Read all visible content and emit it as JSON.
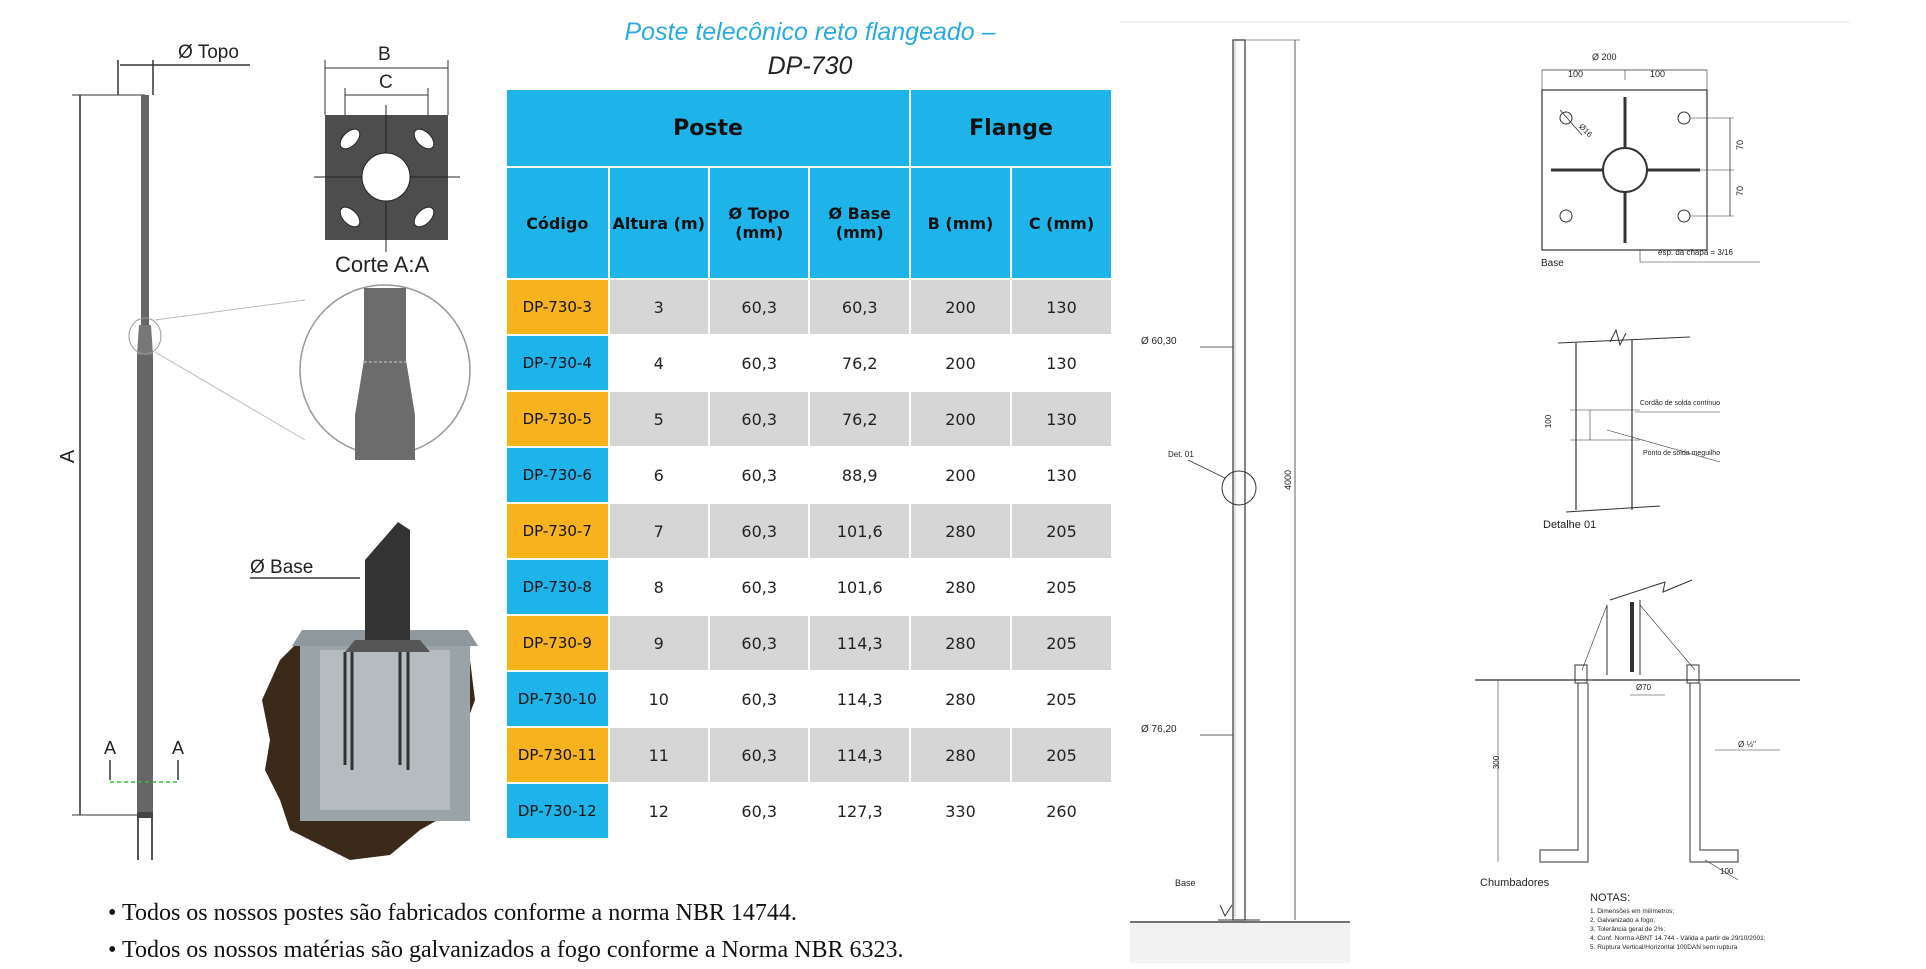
{
  "title": {
    "line1": "Poste telecônico reto flangeado –",
    "line2": "DP-730"
  },
  "left_drawing": {
    "topo_label": "Ø Topo",
    "a_label": "A",
    "section_mark": "A",
    "b_label": "B",
    "c_label": "C",
    "corte_label": "Corte A:A",
    "base_label": "Ø Base"
  },
  "table": {
    "group_headers": [
      "Poste",
      "Flange"
    ],
    "headers": [
      "Código",
      "Altura (m)",
      "Ø Topo (mm)",
      "Ø Base (mm)",
      "B (mm)",
      "C (mm)"
    ],
    "rows": [
      {
        "code": "DP-730-3",
        "altura": "3",
        "topo": "60,3",
        "base": "60,3",
        "b": "200",
        "c": "130"
      },
      {
        "code": "DP-730-4",
        "altura": "4",
        "topo": "60,3",
        "base": "76,2",
        "b": "200",
        "c": "130"
      },
      {
        "code": "DP-730-5",
        "altura": "5",
        "topo": "60,3",
        "base": "76,2",
        "b": "200",
        "c": "130"
      },
      {
        "code": "DP-730-6",
        "altura": "6",
        "topo": "60,3",
        "base": "88,9",
        "b": "200",
        "c": "130"
      },
      {
        "code": "DP-730-7",
        "altura": "7",
        "topo": "60,3",
        "base": "101,6",
        "b": "280",
        "c": "205"
      },
      {
        "code": "DP-730-8",
        "altura": "8",
        "topo": "60,3",
        "base": "101,6",
        "b": "280",
        "c": "205"
      },
      {
        "code": "DP-730-9",
        "altura": "9",
        "topo": "60,3",
        "base": "114,3",
        "b": "280",
        "c": "205"
      },
      {
        "code": "DP-730-10",
        "altura": "10",
        "topo": "60,3",
        "base": "114,3",
        "b": "280",
        "c": "205"
      },
      {
        "code": "DP-730-11",
        "altura": "11",
        "topo": "60,3",
        "base": "114,3",
        "b": "280",
        "c": "205"
      },
      {
        "code": "DP-730-12",
        "altura": "12",
        "topo": "60,3",
        "base": "127,3",
        "b": "330",
        "c": "260"
      }
    ]
  },
  "bullets": [
    "Todos os nossos postes são fabricados conforme a norma NBR 14744.",
    "Todos os nossos matérias são galvanizados  a fogo conforme a Norma NBR 6323."
  ],
  "technical_drawing": {
    "d_top": "Ø 60,30",
    "d_base": "Ø 76,20",
    "det": "Det. 01",
    "height": "4000",
    "base": "Base",
    "plate_total": "Ø 200",
    "plate_half_1": "100",
    "plate_half_2": "100",
    "hole": "Ø16",
    "v70a": "70",
    "v70b": "70",
    "esp": "esp. da chapa = 3/16",
    "base_label": "Base",
    "d100": "100",
    "cordao": "Cordão de solda contínuo",
    "ponto": "Ponto de solda meguilho",
    "detalhe": "Detalhe 01",
    "d70": "Ø70",
    "d_half": "Ø ½\"",
    "d300": "300",
    "d100b": "100",
    "chumbadores": "Chumbadores",
    "notas_title": "NOTAS:",
    "notas": [
      "1. Dimensões em milímetros;",
      "2. Galvanizado a fogo;",
      "3. Tolerância geral de 2%;",
      "4. Conf. Norma ABNT 14.744 - Válida a partir de 29/10/2001;",
      "5. Ruptura Vertical/Horizontal 100DAN sem ruptura"
    ]
  },
  "colors": {
    "blue": "#1eb4ea",
    "orange": "#f7b21e",
    "grey": "#d6d6d6",
    "title_blue": "#29abe2"
  }
}
